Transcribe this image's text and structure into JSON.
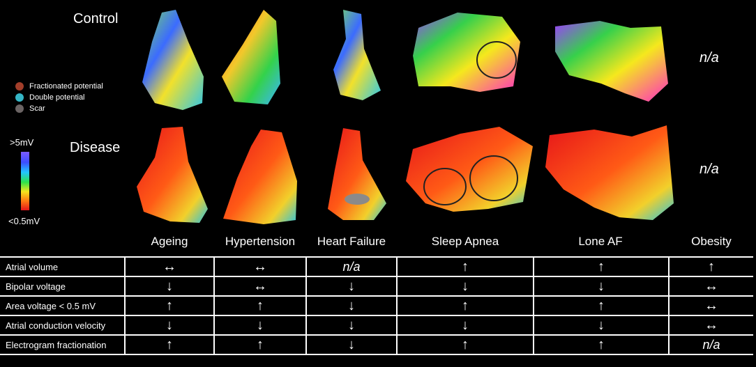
{
  "rows": {
    "control": "Control",
    "disease": "Disease"
  },
  "na_label": "n/a",
  "legend": [
    {
      "label": "Fractionated  potential",
      "color": "#a23e2a"
    },
    {
      "label": "Double  potential",
      "color": "#35b5c6"
    },
    {
      "label": "Scar",
      "color": "#6b6464"
    }
  ],
  "scale": {
    "high": ">5mV",
    "low": "<0.5mV"
  },
  "columns": [
    "Ageing",
    "Hypertension",
    "Heart Failure",
    "Sleep Apnea",
    "Lone AF",
    "Obesity"
  ],
  "table": {
    "rows": [
      {
        "label": "Atrial volume",
        "cells": [
          "↔",
          "↔",
          "n/a",
          "↑",
          "↑",
          "↑"
        ]
      },
      {
        "label": "Bipolar voltage",
        "cells": [
          "↓",
          "↔",
          "↓",
          "↓",
          "↓",
          "↔"
        ]
      },
      {
        "label": "Area voltage < 0.5 mV",
        "cells": [
          "↑",
          "↑",
          "↓",
          "↑",
          "↑",
          "↔"
        ]
      },
      {
        "label": "Atrial conduction velocity",
        "cells": [
          "↓",
          "↓",
          "↓",
          "↓",
          "↓",
          "↔"
        ]
      },
      {
        "label": "Electrogram fractionation",
        "cells": [
          "↑",
          "↑",
          "↓",
          "↑",
          "↑",
          "n/a"
        ]
      }
    ]
  }
}
